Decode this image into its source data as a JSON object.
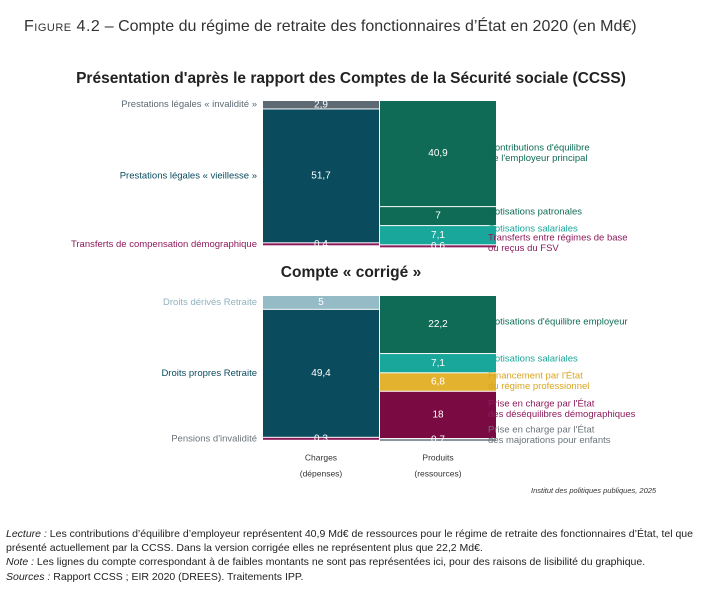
{
  "figure": {
    "number_prefix": "Figure 4.2",
    "title": " – Compte du régime de retraite des fonctionnaires d’État en 2020 (en Md€)"
  },
  "chart_data": [
    {
      "type": "bar",
      "stacked": true,
      "title": "Présentation d'après le rapport des Comptes de la Sécurité sociale (CCSS)",
      "categories": [
        "Charges\n(dépenses)",
        "Produits\n(ressources)"
      ],
      "series_charges": [
        {
          "name": "Prestations légales « invalidité »",
          "value": 2.9,
          "label": "2,9",
          "color": "#5d6a73"
        },
        {
          "name": "Prestations légales « vieillesse »",
          "value": 51.7,
          "label": "51,7",
          "color": "#0a4b5e"
        },
        {
          "name": "Transferts de compensation démographique",
          "value": 0.4,
          "label": "0,4",
          "color": "#8c1a5b"
        }
      ],
      "series_produits": [
        {
          "name": "Contributions d'équilibre de l'employeur principal",
          "value": 40.9,
          "label": "40,9",
          "color": "#0f6b55"
        },
        {
          "name": "Cotisations patronales",
          "value": 7,
          "label": "7",
          "color": "#0f6b55"
        },
        {
          "name": "Cotisations salariales",
          "value": 7.1,
          "label": "7,1",
          "color": "#18a79a"
        },
        {
          "name": "Transferts entre régimes de base ou reçus du FSV",
          "value": 0.6,
          "label": "0,6",
          "color": "#8c1a5b"
        }
      ]
    },
    {
      "type": "bar",
      "stacked": true,
      "title": "Compte « corrigé »",
      "categories": [
        "Charges\n(dépenses)",
        "Produits\n(ressources)"
      ],
      "series_charges": [
        {
          "name": "Droits dérivés Retraite",
          "value": 5,
          "label": "5",
          "color": "#95bcc6"
        },
        {
          "name": "Droits propres Retraite",
          "value": 49.4,
          "label": "49,4",
          "color": "#0a4b5e"
        },
        {
          "name": "Pensions d'invalidité",
          "value": 0.3,
          "label": "0,3",
          "color": "#8c1a5b"
        }
      ],
      "series_produits": [
        {
          "name": "Cotisations d'équilibre employeur",
          "value": 22.2,
          "label": "22,2",
          "color": "#0f6b55"
        },
        {
          "name": "Cotisations salariales",
          "value": 7.1,
          "label": "7,1",
          "color": "#18a79a"
        },
        {
          "name": "Financement par l'État du régime professionnel",
          "value": 6.8,
          "label": "6,8",
          "color": "#e3b330"
        },
        {
          "name": "Prise en charge par l'État des déséquilibres démographiques",
          "value": 18,
          "label": "18",
          "color": "#7a0b42"
        },
        {
          "name": "Prise en charge par l'État des majorations pour enfants",
          "value": 0.7,
          "label": "0,7",
          "color": "#8a949a"
        }
      ]
    }
  ],
  "axis": {
    "charges_line1": "Charges",
    "charges_line2": "(dépenses)",
    "produits_line1": "Produits",
    "produits_line2": "(ressources)"
  },
  "labels": {
    "top_left": [
      "Prestations légales « invalidité »",
      "Prestations légales « vieillesse »",
      "Transferts de compensation démographique"
    ],
    "top_right": [
      [
        "Contributions d'équilibre",
        "de l'employeur principal"
      ],
      [
        "Cotisations patronales"
      ],
      [
        "Cotisations salariales"
      ],
      [
        "Transferts entre régimes de base",
        "ou reçus du FSV"
      ]
    ],
    "bottom_left": [
      "Droits dérivés Retraite",
      "Droits propres Retraite",
      "Pensions d'invalidité"
    ],
    "bottom_right": [
      [
        "Cotisations d'équilibre employeur"
      ],
      [
        "Cotisations salariales"
      ],
      [
        "Financement par l'État",
        "du régime professionnel"
      ],
      [
        "Prise en charge par l'État",
        "des déséquilibres démographiques"
      ],
      [
        "Prise en charge par l'État",
        "des majorations pour enfants"
      ]
    ]
  },
  "colors": {
    "label_charges_dark": "#0a4b5e",
    "label_charges_grey": "#5d6a73",
    "label_charges_light": "#8fb3bd",
    "label_magenta": "#8c1a5b",
    "label_green": "#0f6b55",
    "label_teal": "#18a79a",
    "label_gold": "#d9a520",
    "label_grey": "#6b747a"
  },
  "credit": "Institut des politiques publiques, 2025",
  "notes": {
    "lecture_label": "Lecture :",
    "lecture_text": " Les contributions d’équilibre d’employeur représentent 40,9 Md€ de ressources pour le régime de retraite des fonctionnaires d’État, tel que présenté actuellement par la CCSS. Dans la version corrigée elles ne représentent plus que 22,2 Md€.",
    "note_label": "Note :",
    "note_text": " Les lignes du compte correspondant à de faibles montants ne sont pas représentées ici, pour des raisons de lisibilité du graphique.",
    "sources_label": "Sources :",
    "sources_text": " Rapport CCSS ; EIR 2020 (DREES). Traitements IPP."
  }
}
